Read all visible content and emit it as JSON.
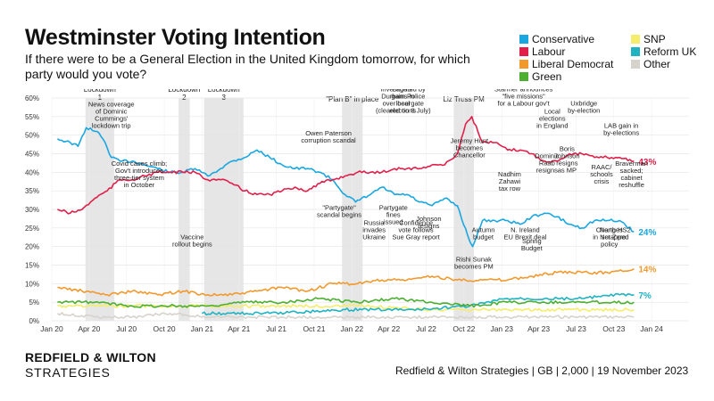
{
  "title": "Westminster Voting Intention",
  "subtitle": "If there were to be a General Election in the United Kingdom tomorrow, for which party would you vote?",
  "brand": {
    "line1": "REDFIELD & WILTON",
    "line2": "STRATEGIES"
  },
  "source": "Redfield & Wilton Strategies | GB | 2,000 | 19 November 2023",
  "chart_data": {
    "type": "line",
    "xlabel": "",
    "ylabel": "",
    "xlim": [
      "2020-01-01",
      "2024-04-01"
    ],
    "ylim": [
      0,
      60
    ],
    "y_ticks": [
      "0%",
      "5%",
      "10%",
      "15%",
      "20%",
      "25%",
      "30%",
      "35%",
      "40%",
      "45%",
      "50%",
      "55%",
      "60%"
    ],
    "x_ticks": [
      {
        "label": "Jan 20",
        "date": "2020-01-01"
      },
      {
        "label": "Apr 20",
        "date": "2020-04-01"
      },
      {
        "label": "Jul 20",
        "date": "2020-07-01"
      },
      {
        "label": "Oct 20",
        "date": "2020-10-01"
      },
      {
        "label": "Jan 21",
        "date": "2021-01-01"
      },
      {
        "label": "Apr 21",
        "date": "2021-04-01"
      },
      {
        "label": "Jul 21",
        "date": "2021-07-01"
      },
      {
        "label": "Oct 21",
        "date": "2021-10-01"
      },
      {
        "label": "Jan 22",
        "date": "2022-01-01"
      },
      {
        "label": "Apr 22",
        "date": "2022-04-01"
      },
      {
        "label": "Jul 22",
        "date": "2022-07-01"
      },
      {
        "label": "Oct 22",
        "date": "2022-10-01"
      },
      {
        "label": "Jan 23",
        "date": "2023-01-01"
      },
      {
        "label": "Apr 23",
        "date": "2023-04-01"
      },
      {
        "label": "Jul 23",
        "date": "2023-07-01"
      },
      {
        "label": "Oct 23",
        "date": "2023-10-01"
      },
      {
        "label": "Jan 24",
        "date": "2024-01-01"
      }
    ],
    "grid": true,
    "legend_position": "top-right",
    "lockdowns": [
      {
        "label": "Lockdown 1",
        "start": "2020-03-23",
        "end": "2020-06-01"
      },
      {
        "label": "Lockdown 2",
        "start": "2020-11-05",
        "end": "2020-12-02"
      },
      {
        "label": "Lockdown 3",
        "start": "2021-01-06",
        "end": "2021-04-12"
      },
      {
        "label": "\"Plan B\" in place",
        "start": "2021-12-08",
        "end": "2022-01-27"
      },
      {
        "label": "Liz Truss PM",
        "start": "2022-09-06",
        "end": "2022-10-25"
      }
    ],
    "series": [
      {
        "name": "Conservative",
        "color": "#1aa7e0",
        "end_label": "24%",
        "points": [
          [
            "2020-01-15",
            49
          ],
          [
            "2020-02-15",
            48
          ],
          [
            "2020-03-05",
            47
          ],
          [
            "2020-03-25",
            52
          ],
          [
            "2020-04-20",
            51
          ],
          [
            "2020-05-10",
            48
          ],
          [
            "2020-05-25",
            44
          ],
          [
            "2020-06-15",
            43
          ],
          [
            "2020-07-15",
            43
          ],
          [
            "2020-08-15",
            42
          ],
          [
            "2020-09-15",
            41
          ],
          [
            "2020-10-15",
            40
          ],
          [
            "2020-11-15",
            40
          ],
          [
            "2020-12-15",
            41
          ],
          [
            "2021-01-15",
            39
          ],
          [
            "2021-02-15",
            41
          ],
          [
            "2021-03-15",
            43
          ],
          [
            "2021-04-15",
            44
          ],
          [
            "2021-05-15",
            46
          ],
          [
            "2021-06-15",
            44
          ],
          [
            "2021-07-15",
            42
          ],
          [
            "2021-08-15",
            41
          ],
          [
            "2021-09-15",
            41
          ],
          [
            "2021-10-15",
            40
          ],
          [
            "2021-11-15",
            38
          ],
          [
            "2021-12-15",
            34
          ],
          [
            "2022-01-10",
            32
          ],
          [
            "2022-02-15",
            34
          ],
          [
            "2022-03-15",
            36
          ],
          [
            "2022-04-15",
            34
          ],
          [
            "2022-05-15",
            34
          ],
          [
            "2022-06-15",
            32
          ],
          [
            "2022-07-15",
            31
          ],
          [
            "2022-08-15",
            33
          ],
          [
            "2022-09-15",
            31
          ],
          [
            "2022-10-10",
            23
          ],
          [
            "2022-10-22",
            20
          ],
          [
            "2022-11-15",
            27
          ],
          [
            "2022-12-15",
            27
          ],
          [
            "2023-01-15",
            27
          ],
          [
            "2023-02-15",
            26
          ],
          [
            "2023-03-15",
            28
          ],
          [
            "2023-04-15",
            29
          ],
          [
            "2023-05-15",
            28
          ],
          [
            "2023-06-15",
            26
          ],
          [
            "2023-07-15",
            25
          ],
          [
            "2023-08-15",
            27
          ],
          [
            "2023-09-15",
            27
          ],
          [
            "2023-10-15",
            27
          ],
          [
            "2023-11-19",
            24
          ]
        ]
      },
      {
        "name": "Labour",
        "color": "#e0204a",
        "end_label": "43%",
        "points": [
          [
            "2020-01-15",
            30
          ],
          [
            "2020-02-15",
            29
          ],
          [
            "2020-03-15",
            30
          ],
          [
            "2020-04-15",
            33
          ],
          [
            "2020-05-15",
            35
          ],
          [
            "2020-06-15",
            38
          ],
          [
            "2020-07-15",
            38
          ],
          [
            "2020-08-15",
            39
          ],
          [
            "2020-09-15",
            40
          ],
          [
            "2020-10-15",
            40
          ],
          [
            "2020-11-15",
            40
          ],
          [
            "2020-12-15",
            40
          ],
          [
            "2021-01-15",
            38
          ],
          [
            "2021-02-15",
            38
          ],
          [
            "2021-03-15",
            37
          ],
          [
            "2021-04-15",
            35
          ],
          [
            "2021-05-15",
            34
          ],
          [
            "2021-06-15",
            34
          ],
          [
            "2021-07-15",
            35
          ],
          [
            "2021-08-15",
            36
          ],
          [
            "2021-09-15",
            35
          ],
          [
            "2021-10-15",
            37
          ],
          [
            "2021-11-15",
            38
          ],
          [
            "2021-12-15",
            39
          ],
          [
            "2022-01-15",
            40
          ],
          [
            "2022-02-15",
            40
          ],
          [
            "2022-03-15",
            40
          ],
          [
            "2022-04-15",
            41
          ],
          [
            "2022-05-15",
            41
          ],
          [
            "2022-06-15",
            41
          ],
          [
            "2022-07-15",
            42
          ],
          [
            "2022-08-15",
            42
          ],
          [
            "2022-09-15",
            45
          ],
          [
            "2022-10-05",
            53
          ],
          [
            "2022-10-20",
            55
          ],
          [
            "2022-11-15",
            48
          ],
          [
            "2022-12-15",
            48
          ],
          [
            "2023-01-15",
            46
          ],
          [
            "2023-02-15",
            46
          ],
          [
            "2023-03-15",
            45
          ],
          [
            "2023-04-15",
            43
          ],
          [
            "2023-05-15",
            43
          ],
          [
            "2023-06-15",
            45
          ],
          [
            "2023-07-15",
            45
          ],
          [
            "2023-08-15",
            44
          ],
          [
            "2023-09-15",
            44
          ],
          [
            "2023-10-15",
            44
          ],
          [
            "2023-11-19",
            43
          ]
        ]
      },
      {
        "name": "Liberal Democrat",
        "color": "#f2992e",
        "end_label": "14%",
        "points": [
          [
            "2020-01-15",
            9
          ],
          [
            "2020-03-15",
            8
          ],
          [
            "2020-05-15",
            7
          ],
          [
            "2020-07-15",
            8
          ],
          [
            "2020-09-15",
            7
          ],
          [
            "2020-11-15",
            8
          ],
          [
            "2021-01-15",
            7
          ],
          [
            "2021-03-15",
            7
          ],
          [
            "2021-05-15",
            8
          ],
          [
            "2021-07-15",
            9
          ],
          [
            "2021-09-15",
            8
          ],
          [
            "2021-11-15",
            10
          ],
          [
            "2022-01-15",
            10
          ],
          [
            "2022-03-15",
            11
          ],
          [
            "2022-05-15",
            11
          ],
          [
            "2022-07-15",
            12
          ],
          [
            "2022-09-15",
            11
          ],
          [
            "2022-11-15",
            11
          ],
          [
            "2023-01-15",
            11
          ],
          [
            "2023-03-15",
            12
          ],
          [
            "2023-05-15",
            13
          ],
          [
            "2023-07-15",
            13
          ],
          [
            "2023-09-15",
            13
          ],
          [
            "2023-11-19",
            14
          ]
        ]
      },
      {
        "name": "Green",
        "color": "#4caf32",
        "end_label": "",
        "points": [
          [
            "2020-01-15",
            5
          ],
          [
            "2020-04-15",
            5
          ],
          [
            "2020-07-15",
            4
          ],
          [
            "2020-10-15",
            4
          ],
          [
            "2021-01-15",
            4
          ],
          [
            "2021-04-15",
            5
          ],
          [
            "2021-07-15",
            5
          ],
          [
            "2021-10-15",
            6
          ],
          [
            "2022-01-15",
            5
          ],
          [
            "2022-04-15",
            6
          ],
          [
            "2022-07-15",
            5
          ],
          [
            "2022-10-15",
            4
          ],
          [
            "2023-01-15",
            5
          ],
          [
            "2023-04-15",
            5
          ],
          [
            "2023-07-15",
            5
          ],
          [
            "2023-11-19",
            5
          ]
        ]
      },
      {
        "name": "SNP",
        "color": "#f4ec6a",
        "end_label": "",
        "points": [
          [
            "2020-01-15",
            4
          ],
          [
            "2020-07-15",
            4
          ],
          [
            "2021-01-15",
            4
          ],
          [
            "2021-07-15",
            4
          ],
          [
            "2022-01-15",
            4
          ],
          [
            "2022-07-15",
            3
          ],
          [
            "2023-01-15",
            3
          ],
          [
            "2023-07-15",
            3
          ],
          [
            "2023-11-19",
            3
          ]
        ]
      },
      {
        "name": "Reform UK",
        "color": "#1fb3c2",
        "end_label": "7%",
        "points": [
          [
            "2021-01-01",
            2
          ],
          [
            "2021-06-15",
            2
          ],
          [
            "2021-12-15",
            3
          ],
          [
            "2022-06-15",
            3
          ],
          [
            "2022-10-15",
            4
          ],
          [
            "2023-01-15",
            6
          ],
          [
            "2023-04-15",
            6
          ],
          [
            "2023-07-15",
            6
          ],
          [
            "2023-10-15",
            7
          ],
          [
            "2023-11-19",
            7
          ]
        ]
      },
      {
        "name": "Other",
        "color": "#d6d3cc",
        "end_label": "",
        "points": [
          [
            "2020-01-15",
            2
          ],
          [
            "2020-04-15",
            1
          ],
          [
            "2020-07-15",
            1
          ],
          [
            "2020-10-15",
            2
          ],
          [
            "2021-01-15",
            1
          ],
          [
            "2021-07-15",
            1
          ],
          [
            "2022-01-15",
            1
          ],
          [
            "2022-07-15",
            1
          ],
          [
            "2023-01-15",
            1
          ],
          [
            "2023-07-15",
            1
          ],
          [
            "2023-11-19",
            1
          ]
        ]
      }
    ],
    "annotations": [
      {
        "text": "News coverage\nof Dominic\nCummings'\nlockdown trip",
        "date": "2020-05-25",
        "value": 52
      },
      {
        "text": "Covid cases climb;\nGov't introduces\nthree-tier system\nin October",
        "date": "2020-08-01",
        "value": 36
      },
      {
        "text": "Vaccine\nrollout begins",
        "date": "2020-12-08",
        "value": 20
      },
      {
        "text": "Owen Paterson\ncorruption scandal",
        "date": "2021-11-05",
        "value": 48
      },
      {
        "text": "\"Partygate\"\nscandal begins",
        "date": "2021-12-01",
        "value": 28
      },
      {
        "text": "Russia\ninvades\nUkraine",
        "date": "2022-02-24",
        "value": 22
      },
      {
        "text": "Labour\ngains in\nlocal\nelections",
        "date": "2022-05-05",
        "value": 56
      },
      {
        "text": "Partygate\nfines\nissued",
        "date": "2022-04-12",
        "value": 26
      },
      {
        "text": "Starmer\ninvestigated by\nDurham Police\nover beergate\n(cleared on 8 July)",
        "date": "2022-05-06",
        "value": 56
      },
      {
        "text": "Confidence\nvote follows\nSue Gray report",
        "date": "2022-06-06",
        "value": 22
      },
      {
        "text": "Johnson\nresigns",
        "date": "2022-07-07",
        "value": 25
      },
      {
        "text": "Jeremy Hunt\nbecomes\nChancellor",
        "date": "2022-10-14",
        "value": 44
      },
      {
        "text": "Nadhim\nZahawi\ntax row",
        "date": "2023-01-20",
        "value": 35
      },
      {
        "text": "Autumn\nbudget",
        "date": "2022-11-17",
        "value": 22
      },
      {
        "text": "Rishi Sunak\nbecomes PM",
        "date": "2022-10-25",
        "value": 14
      },
      {
        "text": "Starmer announces\n\"five missions\"\nfor a Labour gov't",
        "date": "2023-02-23",
        "value": 58
      },
      {
        "text": "Local\nelections\nin England",
        "date": "2023-05-04",
        "value": 52
      },
      {
        "text": "Dominic\nRaab\nresigns",
        "date": "2023-04-21",
        "value": 40
      },
      {
        "text": "N. Ireland\nEU Brexit deal",
        "date": "2023-02-27",
        "value": 22
      },
      {
        "text": "Spring\nBudget",
        "date": "2023-03-15",
        "value": 19
      },
      {
        "text": "Boris\nJohnson\nresigns\nas MP",
        "date": "2023-06-09",
        "value": 40
      },
      {
        "text": "Uxbridge\nby-election",
        "date": "2023-07-20",
        "value": 56
      },
      {
        "text": "LAB gain in\nby-elections",
        "date": "2023-10-19",
        "value": 50
      },
      {
        "text": "RAAC/\nschools\ncrisis",
        "date": "2023-09-01",
        "value": 37
      },
      {
        "text": "Changes\nin Net Zero\npolicy",
        "date": "2023-09-20",
        "value": 20
      },
      {
        "text": "North HS2\nscrapped",
        "date": "2023-10-04",
        "value": 22
      },
      {
        "text": "Braverman\nsacked;\ncabinet\nreshuffle",
        "date": "2023-11-13",
        "value": 36
      }
    ]
  }
}
